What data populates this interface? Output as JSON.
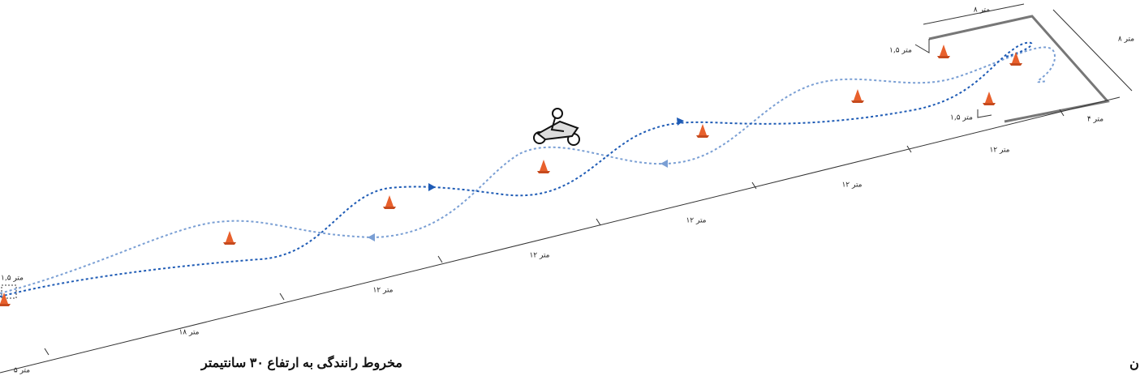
{
  "dimension_labels": [
    "۸ متر",
    "۸ متر",
    "۱,۵ متر",
    "۱,۵ متر",
    "۴ متر",
    "۱۲ متر",
    "۱۲ متر",
    "۱۲ متر",
    "۱۲ متر",
    "۱۲ متر",
    "۱,۵ متر",
    "۱۸ متر",
    "۵ متر"
  ],
  "caption": "مخروط رانندگی به ارتفاع ۳۰ سانتیمتر",
  "edge_text": "ن"
}
